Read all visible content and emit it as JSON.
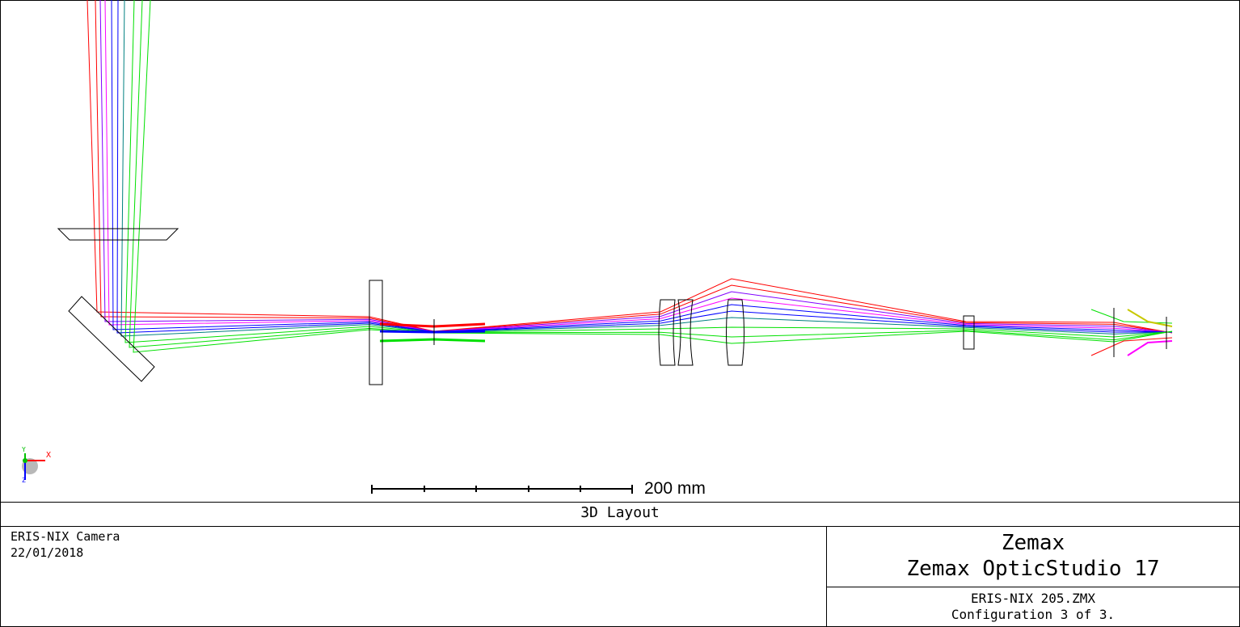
{
  "plot": {
    "title": "3D Layout",
    "scale_bar_label": "200 mm",
    "axis_labels": {
      "x": "X",
      "y": "Y",
      "z": "Z"
    }
  },
  "footer": {
    "left_line1": "ERIS-NIX Camera",
    "left_line2": "22/01/2018",
    "right_brand": "Zemax",
    "right_product": "Zemax OpticStudio 17",
    "right_file": "ERIS-NIX 205.ZMX",
    "right_config": "Configuration 3 of 3."
  },
  "colors": {
    "field_red": "#ff0000",
    "field_green": "#00e000",
    "field_blue": "#0000ff",
    "field_magenta": "#ff00ff",
    "field_yellow": "#c8c800",
    "field_purple": "#8000ff",
    "outline": "#000000"
  }
}
